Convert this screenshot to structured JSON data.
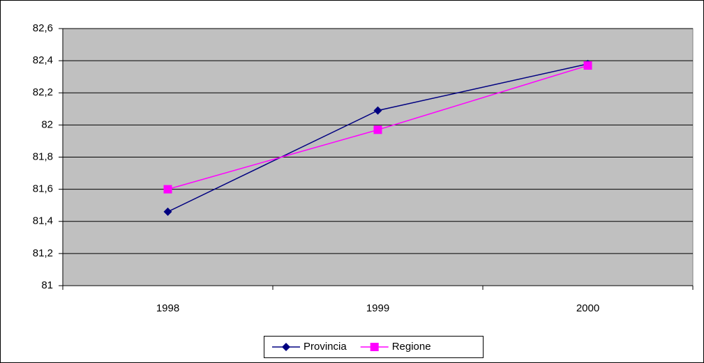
{
  "chart_data": {
    "type": "line",
    "categories": [
      "1998",
      "1999",
      "2000"
    ],
    "series": [
      {
        "name": "Provincia",
        "color": "#000080",
        "marker": "diamond",
        "values": [
          81.46,
          82.09,
          82.38
        ]
      },
      {
        "name": "Regione",
        "color": "#ff00ff",
        "marker": "square",
        "values": [
          81.6,
          81.97,
          82.37
        ]
      }
    ],
    "ylim": [
      81,
      82.6
    ],
    "yticks": [
      81,
      {
        "value": 81.2,
        "label": "81,2"
      },
      {
        "value": 81.4,
        "label": "81,4"
      },
      {
        "value": 81.6,
        "label": "81,6"
      },
      {
        "value": 81.8,
        "label": "81,8"
      },
      82,
      {
        "value": 82.2,
        "label": "82,2"
      },
      {
        "value": 82.4,
        "label": "82,4"
      },
      {
        "value": 82.6,
        "label": "82,6"
      }
    ],
    "grid": true,
    "legend": "bottom"
  }
}
